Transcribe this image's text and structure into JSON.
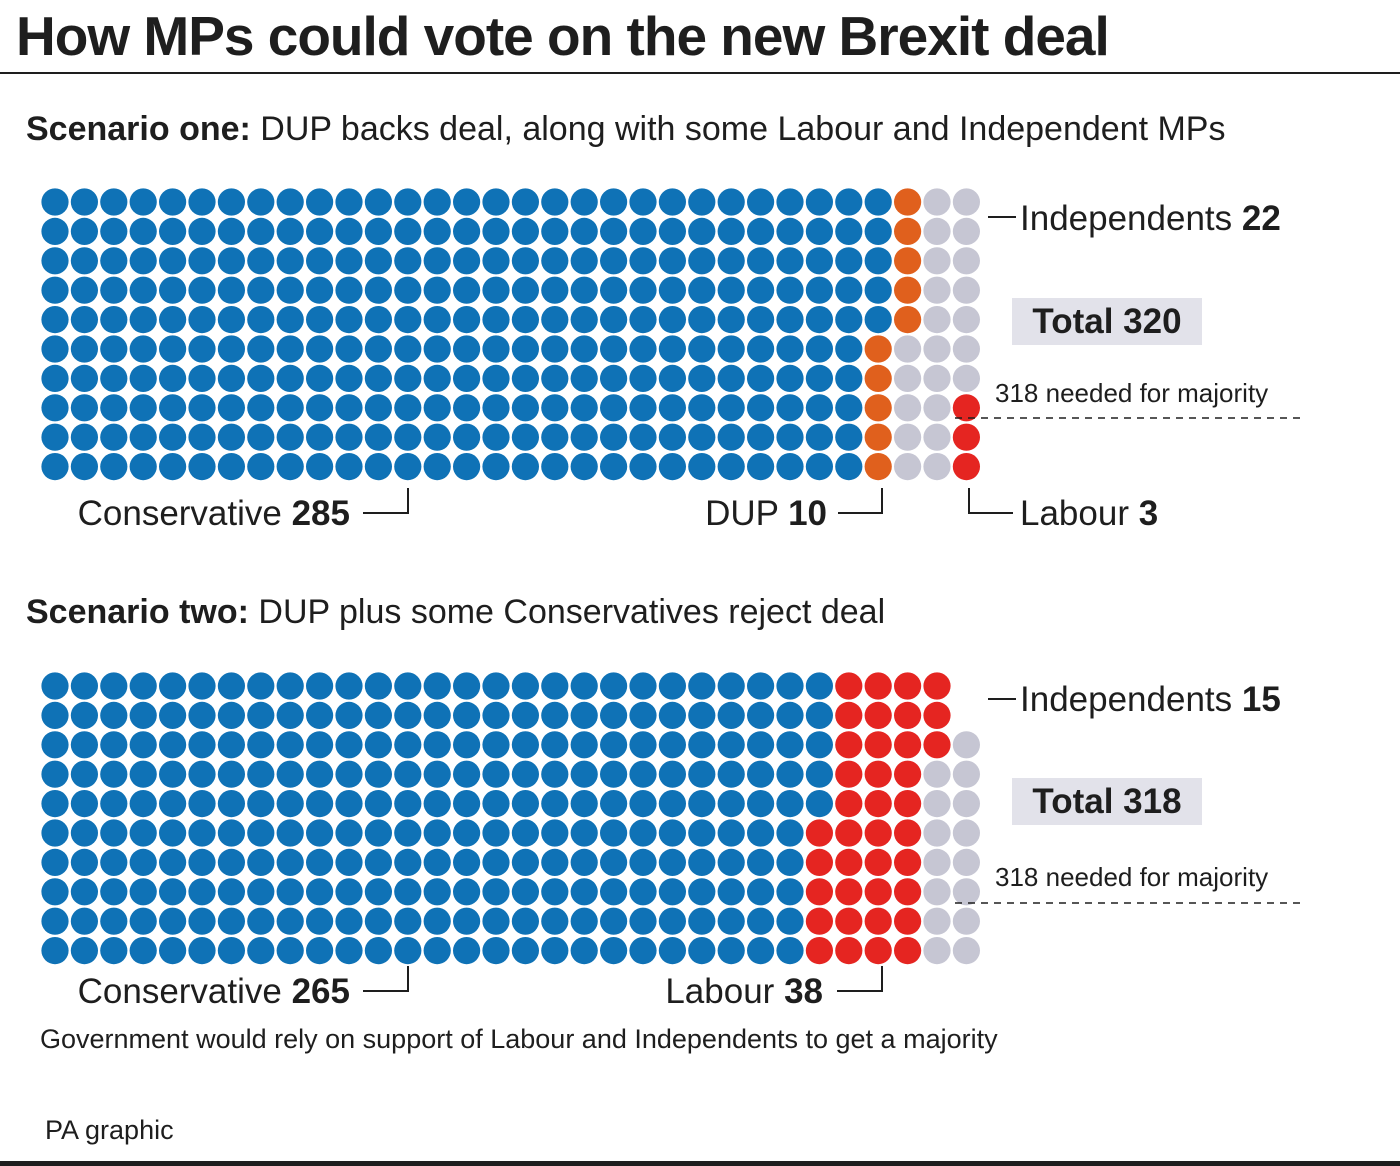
{
  "title": "How MPs could vote on the new Brexit deal",
  "note": "Government would rely on support of Labour and Independents to get a majority",
  "source": "PA graphic",
  "colors": {
    "conservative": "#0f72b6",
    "dup": "#e0601d",
    "labour": "#e52521",
    "independent": "#c6c6d3",
    "total_box": "#e2e2ea"
  },
  "chart_data": [
    {
      "type": "waffle",
      "title_bold": "Scenario one:",
      "title_rest": " DUP backs deal, along with some Labour and Independent MPs",
      "rows": 10,
      "series": [
        {
          "name": "Conservative",
          "value": 285,
          "color_key": "conservative"
        },
        {
          "name": "DUP",
          "value": 10,
          "color_key": "dup"
        },
        {
          "name": "Independents",
          "value": 22,
          "color_key": "independent"
        },
        {
          "name": "Labour",
          "value": 3,
          "color_key": "labour"
        }
      ],
      "total_label": "Total",
      "total": 320,
      "majority_label": "318 needed for majority"
    },
    {
      "type": "waffle",
      "title_bold": "Scenario two:",
      "title_rest": " DUP plus some Conservatives reject deal",
      "rows": 10,
      "series": [
        {
          "name": "Conservative",
          "value": 265,
          "color_key": "conservative"
        },
        {
          "name": "Labour",
          "value": 38,
          "color_key": "labour"
        },
        {
          "name": "Independents",
          "value": 15,
          "color_key": "independent"
        }
      ],
      "total_label": "Total",
      "total": 318,
      "majority_label": "318 needed for majority"
    }
  ]
}
